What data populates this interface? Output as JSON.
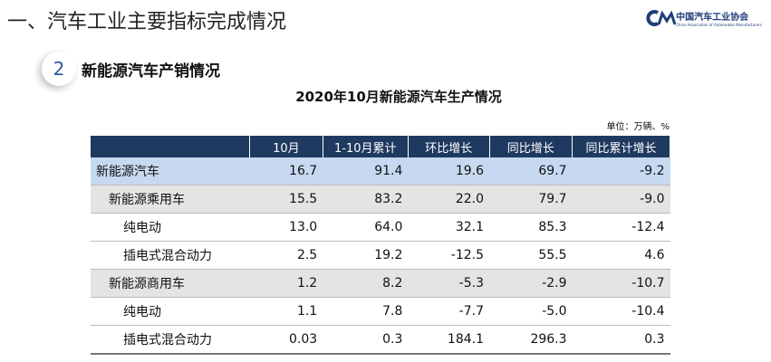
{
  "header": {
    "title": "一、汽车工业主要指标完成情况",
    "logo": {
      "name": "中国汽车工业协会",
      "subtitle": "China Association of Automobile Manufacturers"
    }
  },
  "section": {
    "number": "2",
    "title": "新能源汽车产销情况"
  },
  "table": {
    "title": "2020年10月新能源汽车生产情况",
    "unit": "单位：万辆、%",
    "columns": [
      "10月",
      "1-10月累计",
      "环比增长",
      "同比增长",
      "同比累计增长"
    ],
    "rows": [
      [
        "新能源汽车",
        "16.7",
        "91.4",
        "19.6",
        "69.7",
        "-9.2"
      ],
      [
        "新能源乘用车",
        "15.5",
        "83.2",
        "22.0",
        "79.7",
        "-9.0"
      ],
      [
        "纯电动",
        "13.0",
        "64.0",
        "32.1",
        "85.3",
        "-12.4"
      ],
      [
        "插电式混合动力",
        "2.5",
        "19.2",
        "-12.5",
        "55.5",
        "4.6"
      ],
      [
        "新能源商用车",
        "1.2",
        "8.2",
        "-5.3",
        "-2.9",
        "-10.7"
      ],
      [
        "纯电动",
        "1.1",
        "7.8",
        "-7.7",
        "-5.0",
        "-10.4"
      ],
      [
        "插电式混合动力",
        "0.03",
        "0.3",
        "184.1",
        "296.3",
        "0.3"
      ]
    ]
  }
}
